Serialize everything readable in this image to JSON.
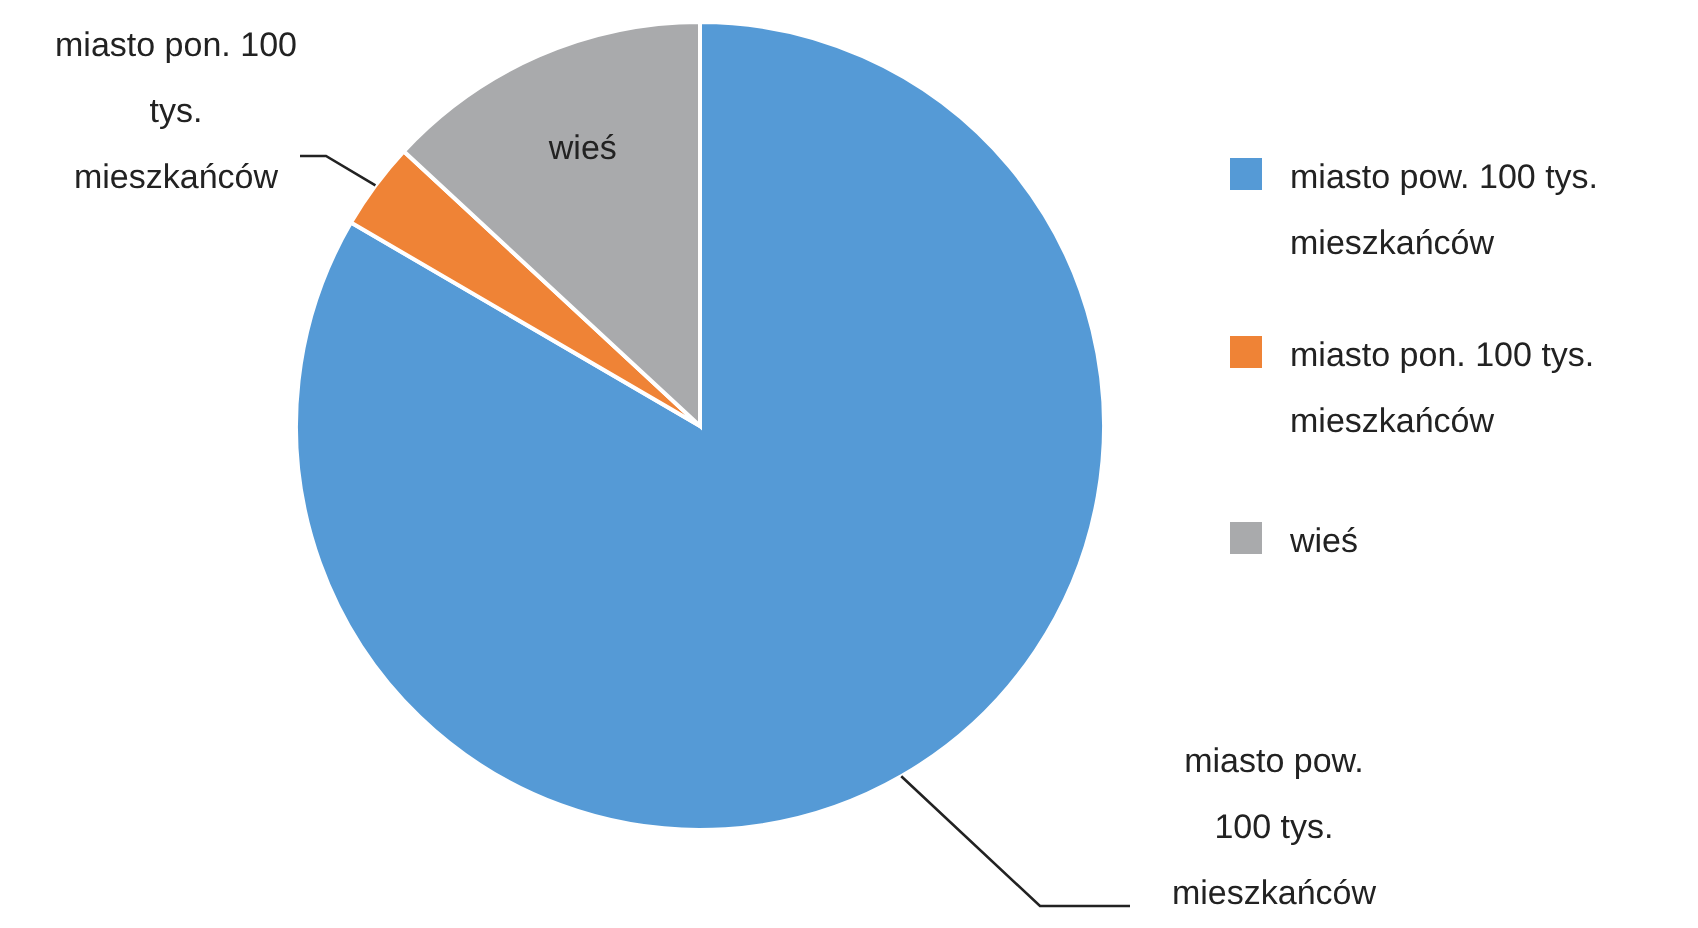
{
  "chart_data": {
    "type": "pie",
    "categories": [
      "miasto pow. 100 tys. mieszkańców",
      "miasto pon. 100 tys. mieszkańców",
      "wieś"
    ],
    "values": [
      83.4,
      3.5,
      13.1
    ],
    "colors": [
      "#559ad6",
      "#ef8336",
      "#a9aaac"
    ],
    "legend": "right"
  }
}
